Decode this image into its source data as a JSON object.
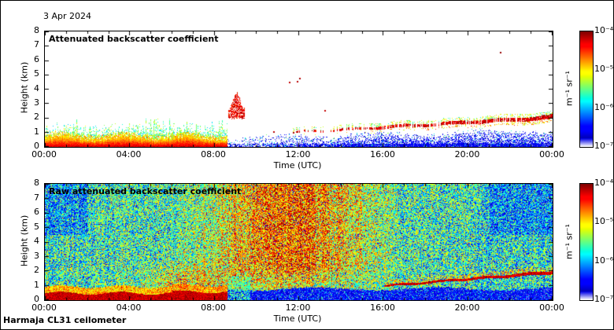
{
  "header": {
    "date_label": "3 Apr 2024"
  },
  "footer": {
    "instrument_label": "Harmaja CL31 ceilometer"
  },
  "panels": [
    {
      "title": "Attenuated backscatter coefficient"
    },
    {
      "title": "Raw attenuated backscatter coefficient"
    }
  ],
  "axes": {
    "x_label": "Time (UTC)",
    "y_label": "Height (km)",
    "x_ticks": [
      "00:00",
      "04:00",
      "08:00",
      "12:00",
      "16:00",
      "20:00",
      "00:00"
    ],
    "y_ticks": [
      "0",
      "1",
      "2",
      "3",
      "4",
      "5",
      "6",
      "7",
      "8"
    ]
  },
  "colorbar": {
    "tick_labels": [
      "10⁻⁴",
      "10⁻⁵",
      "10⁻⁶",
      "10⁻⁷"
    ],
    "unit_label": "m⁻¹ sr⁻¹",
    "colormap": "jet",
    "scale": "log"
  },
  "chart_data": [
    {
      "type": "heatmap",
      "id": "processed",
      "title": "Attenuated backscatter coefficient",
      "xlabel": "Time (UTC)",
      "ylabel": "Height (km)",
      "x_range_hours": [
        0,
        24
      ],
      "y_range_km": [
        0,
        8
      ],
      "color_scale": {
        "type": "log",
        "min": 1e-07,
        "max": 0.0001,
        "units": "m⁻¹ sr⁻¹",
        "colormap": "jet"
      },
      "features": {
        "surface_layer": {
          "t": [
            0,
            8.6
          ],
          "top_km": 0.55,
          "intensity": "strong (red/orange aerosol layer at ground)"
        },
        "speckle_layer": {
          "t": [
            0,
            8.6
          ],
          "top_km": 1.8,
          "intensity": "moderate (green/yellow speckle above surface layer)"
        },
        "clear_blue_region": {
          "t": [
            8.6,
            24
          ],
          "top_km": 1.1,
          "intensity": "weak (blue scatter near ground)"
        },
        "rising_layer": {
          "t": [
            11.3,
            24
          ],
          "h_start_km": 0.95,
          "h_end_km": 2.05,
          "intensity": "strong (thin red layer rising through afternoon)"
        },
        "virga": {
          "t": [
            8.65,
            9.45
          ],
          "base_km": 2.0,
          "top_km": 3.6,
          "intensity": "strong (red streak aloft ~09:00)"
        },
        "spots": [
          {
            "t": 11.55,
            "h": 4.5
          },
          {
            "t": 11.9,
            "h": 4.55
          },
          {
            "t": 12.0,
            "h": 4.78
          },
          {
            "t": 13.2,
            "h": 2.5
          },
          {
            "t": 21.5,
            "h": 6.55
          },
          {
            "t": 10.8,
            "h": 1.05
          }
        ]
      }
    },
    {
      "type": "heatmap",
      "id": "raw",
      "title": "Raw attenuated backscatter coefficient",
      "xlabel": "Time (UTC)",
      "ylabel": "Height (km)",
      "x_range_hours": [
        0,
        24
      ],
      "y_range_km": [
        0,
        8
      ],
      "color_scale": {
        "type": "log",
        "min": 1e-07,
        "max": 0.0001,
        "units": "m⁻¹ sr⁻¹",
        "colormap": "jet"
      },
      "features": {
        "noise_field": "dense rainbow speckle over full frame, strongest (orange/red) 08:00-16:00 aloft, green/cyan near 00:00 and after 18:00",
        "surface_layer": {
          "t": [
            0,
            8.6
          ],
          "top_km": 0.45,
          "intensity": "strong (solid red band at ground)"
        },
        "attenuated_band": {
          "t": [
            8.6,
            24
          ],
          "top_km": 0.75,
          "intensity": "very weak (dark blue band at ground)"
        },
        "transition_streaks": {
          "t": [
            8.65,
            9.7
          ],
          "top_km": 1.6,
          "intensity": "moderate (green streaks)"
        },
        "rising_layer": {
          "t": [
            16,
            24
          ],
          "h_start_km": 0.95,
          "h_end_km": 1.9,
          "intensity": "strong (red line rising to ~1.9 km)"
        }
      }
    }
  ]
}
